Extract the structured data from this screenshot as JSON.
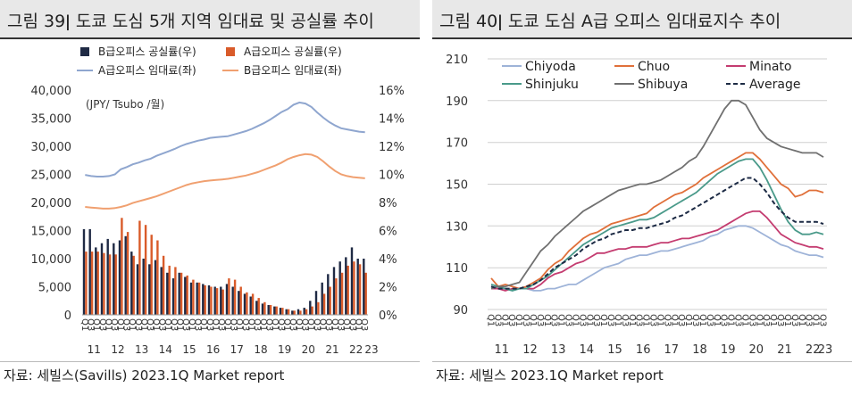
{
  "left": {
    "title": "그림 39ǀ 도쿄 도심 5개 지역 임대료 및 공실률 추이",
    "source": "자료: 세빌스(Savills) 2023.1Q Market report",
    "chart_data": {
      "type": "bar+line",
      "unit_label": "(JPY/ Tsubo /월)",
      "left_axis": {
        "ylim": [
          0,
          40000
        ],
        "ticks": [
          "0",
          "5,000",
          "10,000",
          "15,000",
          "20,000",
          "25,000",
          "30,000",
          "35,000",
          "40,000"
        ]
      },
      "right_axis": {
        "ylim": [
          0,
          16
        ],
        "ticks": [
          "0%",
          "2%",
          "4%",
          "6%",
          "8%",
          "10%",
          "12%",
          "14%",
          "16%"
        ]
      },
      "quarter_labels": [
        "Q1",
        "Q3"
      ],
      "year_labels": [
        "11",
        "12",
        "13",
        "14",
        "15",
        "16",
        "17",
        "18",
        "19",
        "20",
        "21",
        "22",
        "23"
      ],
      "legend_position": "top",
      "series": [
        {
          "name": "B급오피스 공실률(우)",
          "kind": "bar",
          "axis": "right",
          "color": "#1f2a44",
          "values": [
            6.1,
            6.1,
            4.8,
            5.1,
            5.4,
            5.1,
            5.3,
            5.6,
            4.5,
            3.6,
            4.0,
            3.6,
            3.9,
            3.4,
            3.0,
            2.6,
            3.0,
            2.7,
            2.3,
            2.3,
            2.2,
            2.1,
            2.0,
            2.0,
            2.2,
            2.0,
            1.7,
            1.5,
            1.3,
            1.0,
            0.8,
            0.7,
            0.6,
            0.5,
            0.4,
            0.3,
            0.4,
            0.5,
            1.0,
            1.7,
            2.3,
            2.9,
            3.4,
            3.8,
            4.1,
            4.8,
            4.0,
            4.0
          ]
        },
        {
          "name": "A급오피스 공실률(우)",
          "kind": "bar",
          "axis": "right",
          "color": "#d95b2a",
          "values": [
            4.5,
            4.5,
            4.5,
            4.4,
            4.3,
            4.3,
            6.9,
            5.9,
            4.2,
            6.7,
            6.4,
            5.7,
            5.3,
            4.2,
            3.5,
            3.4,
            3.0,
            2.8,
            2.5,
            2.3,
            2.1,
            2.0,
            1.9,
            1.8,
            2.6,
            2.5,
            2.0,
            1.6,
            1.5,
            1.2,
            0.9,
            0.7,
            0.6,
            0.5,
            0.4,
            0.3,
            0.3,
            0.4,
            0.6,
            0.9,
            1.5,
            2.0,
            2.6,
            3.0,
            3.5,
            3.8,
            3.6,
            3.0
          ]
        },
        {
          "name": "A급오피스 임대료(좌)",
          "kind": "line",
          "axis": "left",
          "color": "#8fa6cf",
          "values": [
            24900,
            24700,
            24600,
            24600,
            24700,
            25000,
            25900,
            26300,
            26800,
            27100,
            27500,
            27800,
            28300,
            28700,
            29100,
            29500,
            30000,
            30400,
            30700,
            31000,
            31200,
            31500,
            31600,
            31700,
            31800,
            32100,
            32400,
            32700,
            33100,
            33600,
            34100,
            34700,
            35400,
            36100,
            36600,
            37400,
            37800,
            37600,
            37000,
            36000,
            35100,
            34300,
            33700,
            33200,
            33000,
            32800,
            32600,
            32500
          ]
        },
        {
          "name": "B급오피스 임대료(좌)",
          "kind": "line",
          "axis": "left",
          "color": "#f0a070",
          "values": [
            19200,
            19100,
            19000,
            18900,
            18900,
            19000,
            19200,
            19500,
            19900,
            20200,
            20500,
            20800,
            21100,
            21500,
            21900,
            22300,
            22700,
            23100,
            23400,
            23600,
            23800,
            23900,
            24000,
            24100,
            24200,
            24400,
            24600,
            24800,
            25100,
            25400,
            25800,
            26200,
            26600,
            27100,
            27700,
            28100,
            28400,
            28600,
            28500,
            28100,
            27300,
            26400,
            25600,
            25000,
            24700,
            24500,
            24400,
            24300
          ]
        }
      ]
    }
  },
  "right": {
    "title": "그림 40ǀ 도쿄 도심 A급 오피스 임대료지수 추이",
    "source": "자료: 세빌스 2023.1Q Market report",
    "chart_data": {
      "type": "line",
      "ylim": [
        90,
        210
      ],
      "y_ticks": [
        "90",
        "110",
        "130",
        "150",
        "170",
        "190",
        "210"
      ],
      "quarter_labels": [
        "Q1",
        "Q3"
      ],
      "year_labels": [
        "11",
        "12",
        "13",
        "14",
        "15",
        "16",
        "17",
        "18",
        "19",
        "20",
        "21",
        "22",
        "23"
      ],
      "legend_position": "top",
      "series": [
        {
          "name": "Chiyoda",
          "color": "#9eb3d8",
          "dash": false,
          "values": [
            101,
            100,
            100,
            99,
            100,
            100,
            99,
            99,
            100,
            100,
            101,
            102,
            102,
            104,
            106,
            108,
            110,
            111,
            112,
            114,
            115,
            116,
            116,
            117,
            118,
            118,
            119,
            120,
            121,
            122,
            123,
            125,
            126,
            128,
            129,
            130,
            130,
            129,
            127,
            125,
            123,
            121,
            120,
            118,
            117,
            116,
            116,
            115
          ]
        },
        {
          "name": "Chuo",
          "color": "#e0703a",
          "dash": false,
          "values": [
            105,
            101,
            102,
            101,
            100,
            101,
            103,
            105,
            109,
            112,
            114,
            118,
            121,
            124,
            126,
            127,
            129,
            131,
            132,
            133,
            134,
            135,
            136,
            139,
            141,
            143,
            145,
            146,
            148,
            150,
            153,
            155,
            157,
            159,
            161,
            163,
            165,
            165,
            162,
            158,
            154,
            150,
            148,
            144,
            145,
            147,
            147,
            146
          ]
        },
        {
          "name": "Minato",
          "color": "#c43c70",
          "dash": false,
          "values": [
            100,
            100,
            99,
            100,
            100,
            100,
            100,
            102,
            105,
            107,
            108,
            110,
            112,
            113,
            115,
            117,
            117,
            118,
            119,
            119,
            120,
            120,
            120,
            121,
            122,
            122,
            123,
            124,
            124,
            125,
            126,
            127,
            128,
            130,
            132,
            134,
            136,
            137,
            137,
            134,
            130,
            126,
            124,
            122,
            121,
            120,
            120,
            119
          ]
        },
        {
          "name": "Shinjuku",
          "color": "#4a9a8a",
          "dash": false,
          "values": [
            102,
            101,
            100,
            99,
            100,
            100,
            102,
            104,
            106,
            109,
            112,
            115,
            118,
            121,
            123,
            125,
            127,
            129,
            130,
            131,
            132,
            133,
            133,
            134,
            136,
            138,
            140,
            142,
            144,
            146,
            149,
            152,
            155,
            157,
            159,
            161,
            162,
            162,
            158,
            152,
            145,
            138,
            132,
            128,
            126,
            126,
            127,
            126
          ]
        },
        {
          "name": "Shibuya",
          "color": "#707070",
          "dash": false,
          "values": [
            100,
            101,
            101,
            102,
            103,
            108,
            113,
            118,
            121,
            125,
            128,
            131,
            134,
            137,
            139,
            141,
            143,
            145,
            147,
            148,
            149,
            150,
            150,
            151,
            152,
            154,
            156,
            158,
            161,
            163,
            168,
            174,
            180,
            186,
            190,
            190,
            188,
            182,
            176,
            172,
            170,
            168,
            167,
            166,
            165,
            165,
            165,
            163
          ]
        },
        {
          "name": "Average",
          "color": "#1c2a44",
          "dash": true,
          "values": [
            101,
            100,
            100,
            100,
            100,
            101,
            102,
            104,
            107,
            110,
            112,
            114,
            116,
            119,
            121,
            123,
            124,
            126,
            127,
            128,
            128,
            129,
            129,
            130,
            131,
            132,
            134,
            135,
            137,
            139,
            141,
            143,
            145,
            147,
            149,
            151,
            153,
            153,
            150,
            146,
            141,
            137,
            134,
            132,
            132,
            132,
            132,
            131
          ]
        }
      ]
    }
  }
}
